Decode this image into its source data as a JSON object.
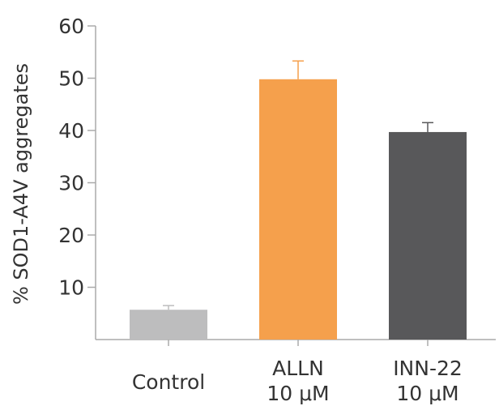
{
  "chart_data": {
    "type": "bar",
    "title": "",
    "xlabel": "",
    "ylabel": "% SOD1-A4V aggregates",
    "ylim": [
      0,
      60
    ],
    "yticks": [
      10,
      20,
      30,
      40,
      50,
      60
    ],
    "grid": false,
    "categories": [
      {
        "line1": "Control",
        "line2": ""
      },
      {
        "line1": "ALLN",
        "line2": "10 μM"
      },
      {
        "line1": "INN-22",
        "line2": "10 μM"
      }
    ],
    "values": [
      5.7,
      49.8,
      39.7
    ],
    "errors": [
      0.8,
      3.5,
      1.8
    ],
    "colors": [
      "#bdbdbe",
      "#f5a04c",
      "#58585a"
    ],
    "axis_color": "#aaaaaa"
  }
}
